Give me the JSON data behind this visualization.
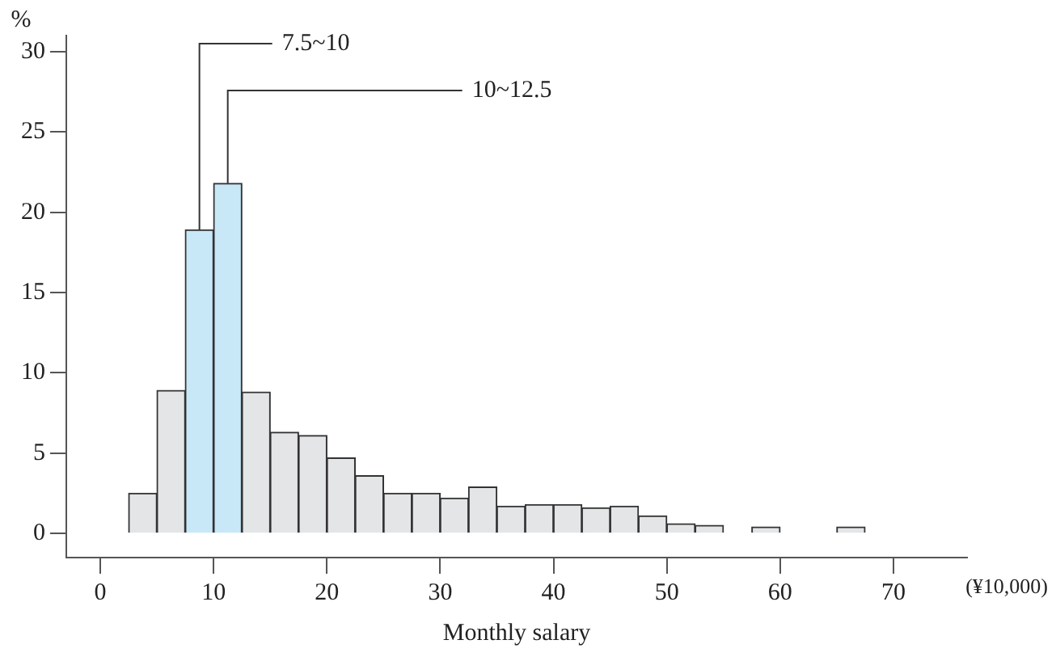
{
  "chart_data": {
    "type": "histogram",
    "bins": [
      2.5,
      5,
      7.5,
      10,
      12.5,
      15,
      17.5,
      20,
      22.5,
      25,
      27.5,
      30,
      32.5,
      35,
      37.5,
      40,
      42.5,
      45,
      47.5,
      50,
      52.5,
      55,
      57.5,
      60,
      62.5,
      65,
      67.5
    ],
    "values": [
      2.5,
      8.9,
      18.9,
      21.8,
      8.8,
      6.3,
      6.1,
      4.7,
      3.6,
      2.5,
      2.5,
      2.2,
      2.9,
      1.7,
      1.8,
      1.8,
      1.6,
      1.7,
      1.1,
      0.6,
      0.5,
      0,
      0.4,
      0,
      0,
      0.4
    ],
    "colors": [
      "#e4e5e7",
      "#e4e5e7",
      "#c8e8f8",
      "#c8e8f8",
      "#e4e5e7",
      "#e4e5e7",
      "#e4e5e7",
      "#e4e5e7",
      "#e4e5e7",
      "#e4e5e7",
      "#e4e5e7",
      "#e4e5e7",
      "#e4e5e7",
      "#e4e5e7",
      "#e4e5e7",
      "#e4e5e7",
      "#e4e5e7",
      "#e4e5e7",
      "#e4e5e7",
      "#e4e5e7",
      "#e4e5e7",
      "#e4e5e7",
      "#e4e5e7",
      "#e4e5e7",
      "#e4e5e7",
      "#e4e5e7"
    ],
    "xlabel": "Monthly salary",
    "ylabel": "%",
    "xlim": [
      -3,
      76.5
    ],
    "xticks": [
      0,
      10,
      20,
      30,
      40,
      50,
      60,
      70
    ],
    "ylim": [
      -1.5,
      31
    ],
    "yticks": [
      0,
      5,
      10,
      15,
      20,
      25,
      30
    ],
    "grid": false,
    "legend": false,
    "annotations": [
      {
        "text": "7.5~10",
        "x": 8.75,
        "y": 18.9
      },
      {
        "text": "10~12.5",
        "x": 11.25,
        "y": 21.8
      },
      "(¥10,000)"
    ]
  }
}
